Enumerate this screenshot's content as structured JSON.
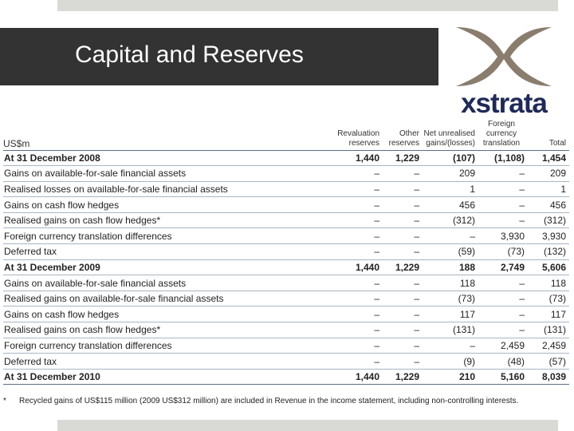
{
  "slide": {
    "title": "Capital and Reserves",
    "brand": "xstrata"
  },
  "colors": {
    "title_band": "#333333",
    "accent_bars": "#d9dad5",
    "logo_x": "#8a7d6e",
    "logo_text": "#1f2a57"
  },
  "table": {
    "headers": {
      "label": "US$m",
      "revaluation": "Revaluation reserves",
      "other": "Other reserves",
      "net_unrealised": "Net unrealised gains/(losses)",
      "foreign": "Foreign currency translation",
      "total": "Total"
    },
    "rows": [
      {
        "label": "At 31 December 2008",
        "rr": "1,440",
        "or": "1,229",
        "nu": "(107)",
        "fc": "(1,108)",
        "tot": "1,454"
      },
      {
        "label": "Gains on available-for-sale financial assets",
        "rr": "–",
        "or": "–",
        "nu": "209",
        "fc": "–",
        "tot": "209"
      },
      {
        "label": "Realised losses on available-for-sale financial assets",
        "rr": "–",
        "or": "–",
        "nu": "1",
        "fc": "–",
        "tot": "1"
      },
      {
        "label": "Gains on cash flow hedges",
        "rr": "–",
        "or": "–",
        "nu": "456",
        "fc": "–",
        "tot": "456"
      },
      {
        "label": "Realised gains on cash flow hedges*",
        "rr": "–",
        "or": "–",
        "nu": "(312)",
        "fc": "–",
        "tot": "(312)"
      },
      {
        "label": "Foreign currency translation differences",
        "rr": "–",
        "or": "–",
        "nu": "–",
        "fc": "3,930",
        "tot": "3,930"
      },
      {
        "label": "Deferred tax",
        "rr": "–",
        "or": "–",
        "nu": "(59)",
        "fc": "(73)",
        "tot": "(132)"
      },
      {
        "label": "At 31 December 2009",
        "rr": "1,440",
        "or": "1,229",
        "nu": "188",
        "fc": "2,749",
        "tot": "5,606"
      },
      {
        "label": "Gains on available-for-sale financial assets",
        "rr": "–",
        "or": "–",
        "nu": "118",
        "fc": "–",
        "tot": "118"
      },
      {
        "label": "Realised gains on available-for-sale financial assets",
        "rr": "–",
        "or": "–",
        "nu": "(73)",
        "fc": "–",
        "tot": "(73)"
      },
      {
        "label": "Gains on cash flow hedges",
        "rr": "–",
        "or": "–",
        "nu": "117",
        "fc": "–",
        "tot": "117"
      },
      {
        "label": "Realised gains on cash flow hedges*",
        "rr": "–",
        "or": "–",
        "nu": "(131)",
        "fc": "–",
        "tot": "(131)"
      },
      {
        "label": "Foreign currency translation differences",
        "rr": "–",
        "or": "–",
        "nu": "–",
        "fc": "2,459",
        "tot": "2,459"
      },
      {
        "label": "Deferred tax",
        "rr": "–",
        "or": "–",
        "nu": "(9)",
        "fc": "(48)",
        "tot": "(57)"
      },
      {
        "label": "At 31 December 2010",
        "rr": "1,440",
        "or": "1,229",
        "nu": "210",
        "fc": "5,160",
        "tot": "8,039"
      }
    ]
  },
  "footnote": {
    "mark": "*",
    "text": "Recycled gains of US$115 million (2009 US$312 million) are included in Revenue in the income statement, including non-controlling interests."
  }
}
